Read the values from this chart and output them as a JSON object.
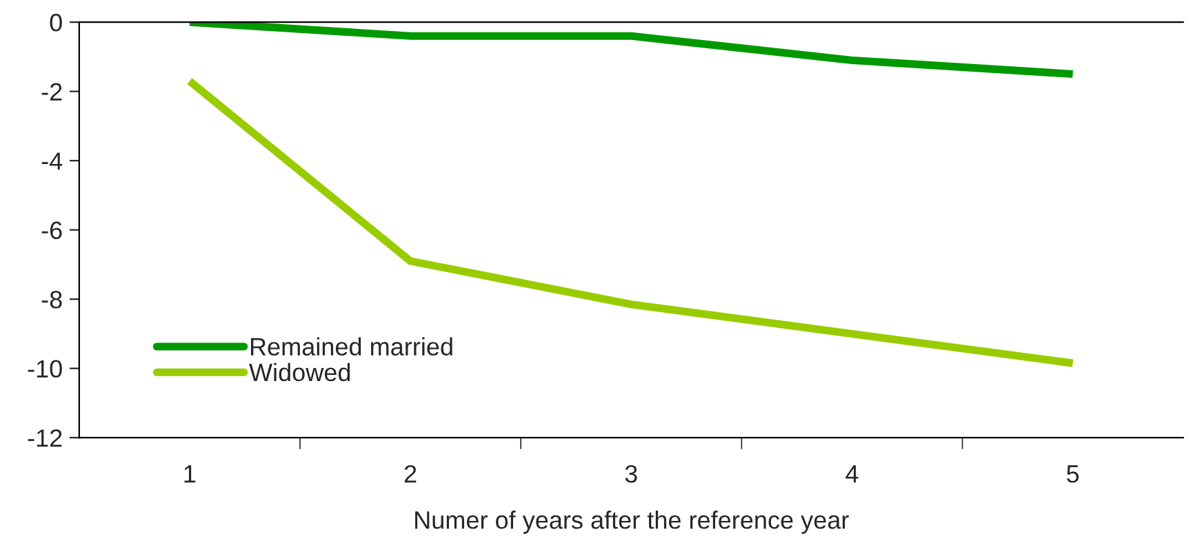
{
  "chart_data": {
    "type": "line",
    "xlabel": "Numer of years after the reference year",
    "categories": [
      "1",
      "2",
      "3",
      "4",
      "5"
    ],
    "series": [
      {
        "name": "Remained married",
        "color": "#009900",
        "values": [
          0,
          -0.4,
          -0.4,
          -1.1,
          -1.5
        ]
      },
      {
        "name": "Widowed",
        "color": "#99cc00",
        "values": [
          -1.7,
          -6.9,
          -8.15,
          -9.0,
          -9.85
        ]
      }
    ],
    "ylim": [
      -12,
      0
    ],
    "yticks": [
      -12,
      -10,
      -8,
      -6,
      -4,
      -2,
      0
    ],
    "grid": false,
    "legend": "bottom left",
    "marker": "none",
    "line_style": "solid"
  }
}
